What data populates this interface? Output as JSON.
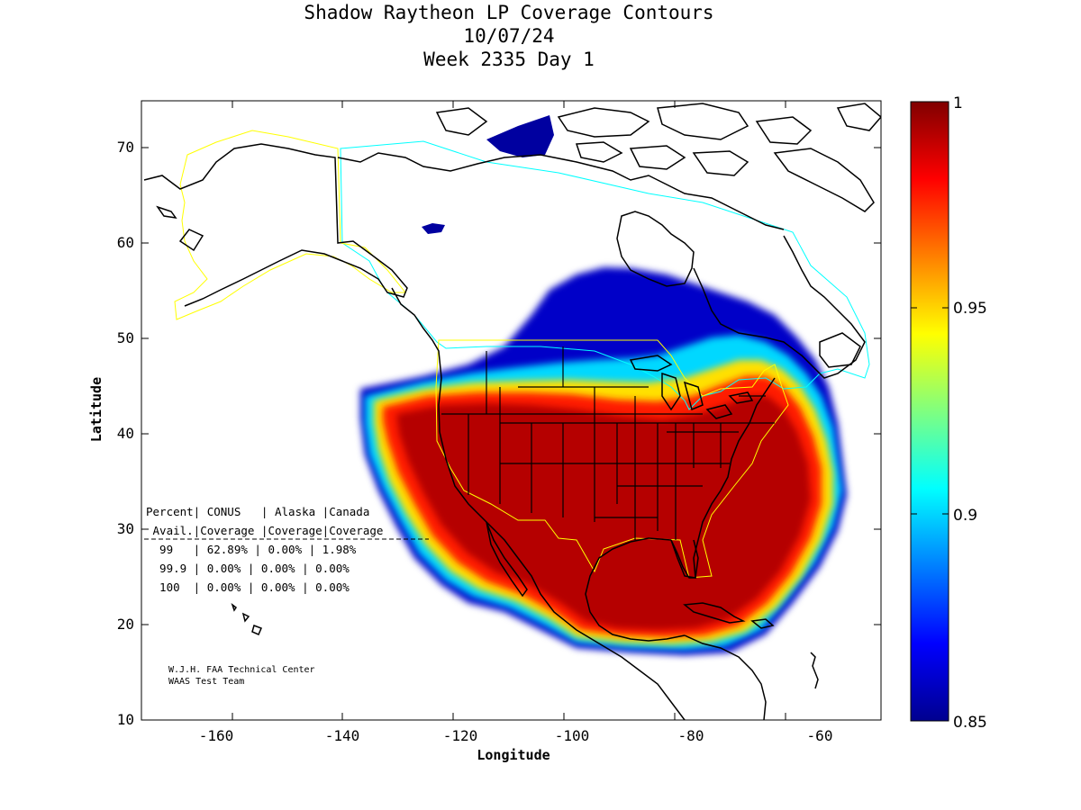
{
  "title": {
    "line1": "Shadow Raytheon LP Coverage Contours",
    "line2": "10/07/24",
    "line3": "Week 2335 Day 1"
  },
  "axes": {
    "xlabel": "Longitude",
    "ylabel": "Latitude",
    "xlim": [
      -175,
      -50
    ],
    "ylim": [
      10,
      75
    ],
    "xticks": [
      "-160",
      "-140",
      "-120",
      "-100",
      "-80",
      "-60"
    ],
    "yticks": [
      "10",
      "20",
      "30",
      "40",
      "50",
      "60",
      "70"
    ]
  },
  "colorbar": {
    "range": [
      0.85,
      1
    ],
    "ticks": [
      "1",
      "0.95",
      "0.9",
      "0.85"
    ],
    "colormap": "jet"
  },
  "table": {
    "header1": "Percent| CONUS   | Alaska |Canada",
    "header2": " Avail.|Coverage |Coverage|Coverage",
    "rows": [
      "  99   | 62.89% | 0.00% | 1.98%",
      "  99.9 | 0.00% | 0.00% | 0.00%",
      "  100  | 0.00% | 0.00% | 0.00%"
    ]
  },
  "credit": {
    "line1": "W.J.H. FAA Technical Center",
    "line2": "WAAS Test Team"
  },
  "colors": {
    "coastline": "#000000",
    "alaska_boundary": "#ffff00",
    "canada_boundary": "#00ffff",
    "conus_boundary": "#ffff00"
  }
}
